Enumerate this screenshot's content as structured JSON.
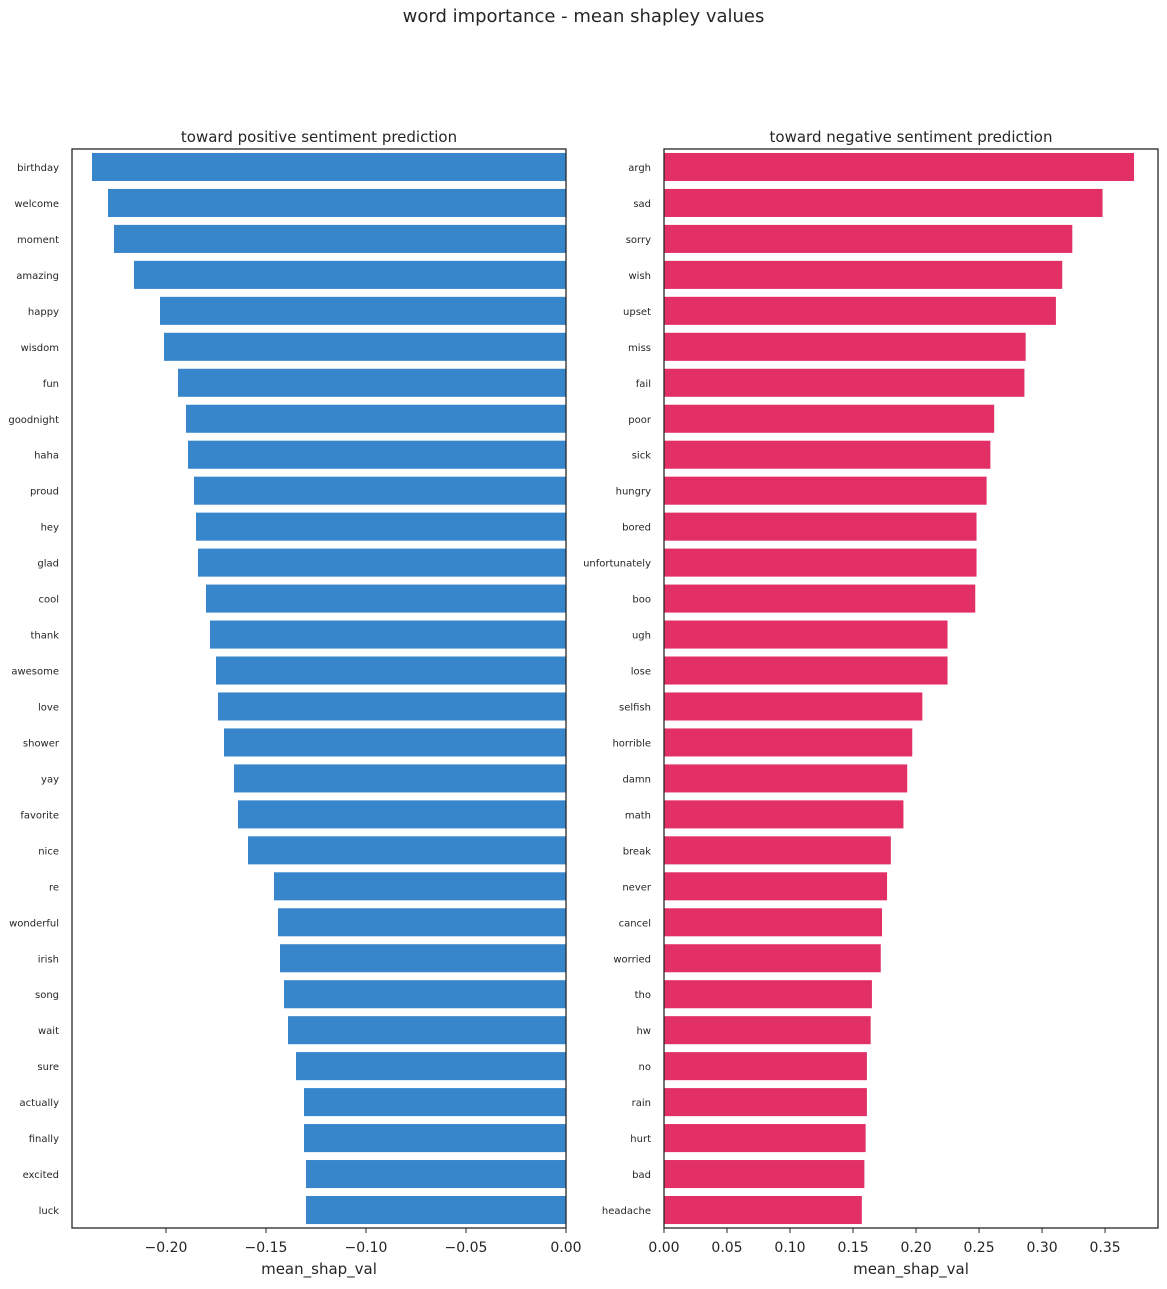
{
  "figure": {
    "suptitle": "word importance - mean shapley values"
  },
  "chart_data": [
    {
      "type": "bar",
      "orientation": "horizontal",
      "title": "toward positive sentiment prediction",
      "xlabel": "mean_shap_val",
      "ylabel": "",
      "color": "#3786cc",
      "xlim": [
        -0.247,
        0.0
      ],
      "xticks": [
        -0.2,
        -0.15,
        -0.1,
        -0.05,
        0.0
      ],
      "xtick_labels": [
        "−0.20",
        "−0.15",
        "−0.10",
        "−0.05",
        "0.00"
      ],
      "grid": false,
      "categories": [
        "birthday",
        "welcome",
        "moment",
        "amazing",
        "happy",
        "wisdom",
        "fun",
        "goodnight",
        "haha",
        "proud",
        "hey",
        "glad",
        "cool",
        "thank",
        "awesome",
        "love",
        "shower",
        "yay",
        "favorite",
        "nice",
        "re",
        "wonderful",
        "irish",
        "song",
        "wait",
        "sure",
        "actually",
        "finally",
        "excited",
        "luck"
      ],
      "values": [
        -0.237,
        -0.229,
        -0.226,
        -0.216,
        -0.203,
        -0.201,
        -0.194,
        -0.19,
        -0.189,
        -0.186,
        -0.185,
        -0.184,
        -0.18,
        -0.178,
        -0.175,
        -0.174,
        -0.171,
        -0.166,
        -0.164,
        -0.159,
        -0.146,
        -0.144,
        -0.143,
        -0.141,
        -0.139,
        -0.135,
        -0.131,
        -0.131,
        -0.13,
        -0.13
      ]
    },
    {
      "type": "bar",
      "orientation": "horizontal",
      "title": "toward negative sentiment prediction",
      "xlabel": "mean_shap_val",
      "ylabel": "",
      "color": "#e23067",
      "xlim": [
        0.0,
        0.392
      ],
      "xticks": [
        0.0,
        0.05,
        0.1,
        0.15,
        0.2,
        0.25,
        0.3,
        0.35
      ],
      "xtick_labels": [
        "0.00",
        "0.05",
        "0.10",
        "0.15",
        "0.20",
        "0.25",
        "0.30",
        "0.35"
      ],
      "grid": false,
      "categories": [
        "argh",
        "sad",
        "sorry",
        "wish",
        "upset",
        "miss",
        "fail",
        "poor",
        "sick",
        "hungry",
        "bored",
        "unfortunately",
        "boo",
        "ugh",
        "lose",
        "selfish",
        "horrible",
        "damn",
        "math",
        "break",
        "never",
        "cancel",
        "worried",
        "tho",
        "hw",
        "no",
        "rain",
        "hurt",
        "bad",
        "headache"
      ],
      "values": [
        0.373,
        0.348,
        0.324,
        0.316,
        0.311,
        0.287,
        0.286,
        0.262,
        0.259,
        0.256,
        0.248,
        0.248,
        0.247,
        0.225,
        0.225,
        0.205,
        0.197,
        0.193,
        0.19,
        0.18,
        0.177,
        0.173,
        0.172,
        0.165,
        0.164,
        0.161,
        0.161,
        0.16,
        0.159,
        0.157
      ]
    }
  ]
}
